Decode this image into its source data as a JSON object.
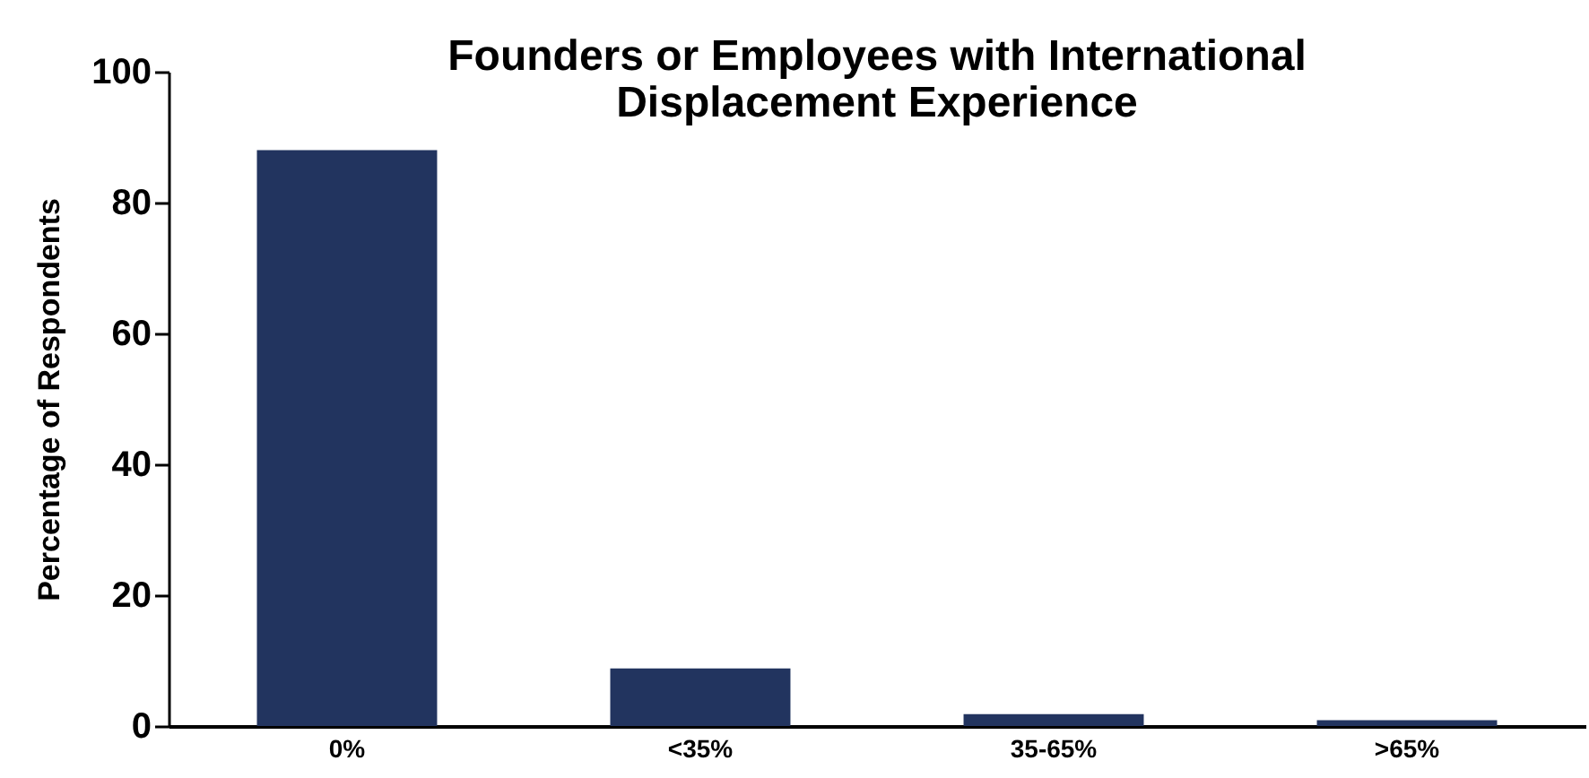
{
  "chart_data": {
    "type": "bar",
    "title": [
      "Founders or Employees with International",
      "Displacement Experience"
    ],
    "ylabel": "Percentage of Respondents",
    "categories": [
      "0%",
      "<35%",
      "35-65%",
      ">65%"
    ],
    "values": [
      88,
      8.8,
      1.8,
      0.9
    ],
    "color": "#22345f",
    "ylim": [
      0,
      100
    ],
    "yticks": [
      0,
      20,
      40,
      60,
      80,
      100
    ],
    "grid": false
  }
}
